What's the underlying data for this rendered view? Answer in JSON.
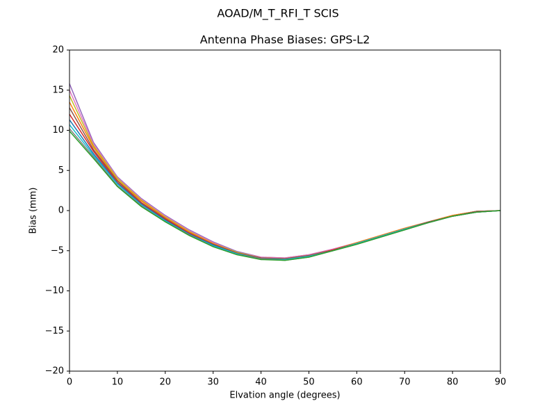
{
  "chart_data": {
    "type": "line",
    "title": "AOAD/M_T_RFI_T  SCIS",
    "subtitle": "Antenna Phase Biases: GPS-L2",
    "x_label": "Elvation angle (degrees)",
    "y_label": "Bias (mm)",
    "x": [
      0,
      5,
      10,
      15,
      20,
      25,
      30,
      35,
      40,
      45,
      50,
      55,
      60,
      65,
      70,
      75,
      80,
      85,
      90
    ],
    "xlim": [
      0,
      90
    ],
    "xticks": [
      0,
      10,
      20,
      30,
      40,
      50,
      60,
      70,
      80,
      90
    ],
    "ylim": [
      -20,
      20
    ],
    "yticks": [
      {
        "value": -20,
        "label": "−20"
      },
      {
        "value": -15,
        "label": "−15"
      },
      {
        "value": -10,
        "label": "−10"
      },
      {
        "value": -5,
        "label": "−5"
      },
      0,
      5,
      10,
      15,
      20
    ],
    "series": [
      {
        "color": "#9467bd",
        "values": [
          15.8,
          8.5,
          4.2,
          1.5,
          -0.6,
          -2.4,
          -3.9,
          -5.1,
          -5.8,
          -5.9,
          -5.5,
          -4.8,
          -4.0,
          -3.1,
          -2.2,
          -1.4,
          -0.6,
          -0.1,
          0.0
        ]
      },
      {
        "color": "#e377c2",
        "values": [
          15.0,
          8.3,
          4.1,
          1.4,
          -0.7,
          -2.5,
          -4.0,
          -5.2,
          -5.8,
          -5.9,
          -5.5,
          -4.8,
          -4.0,
          -3.1,
          -2.2,
          -1.4,
          -0.6,
          -0.1,
          0.0
        ]
      },
      {
        "color": "#bcbd22",
        "values": [
          14.3,
          8.1,
          4.0,
          1.3,
          -0.8,
          -2.6,
          -4.1,
          -5.2,
          -5.9,
          -6.0,
          -5.6,
          -4.9,
          -4.0,
          -3.1,
          -2.2,
          -1.4,
          -0.6,
          -0.1,
          0.0
        ]
      },
      {
        "color": "#ff7f0e",
        "values": [
          13.5,
          7.9,
          3.8,
          1.2,
          -0.9,
          -2.7,
          -4.1,
          -5.3,
          -5.9,
          -6.0,
          -5.6,
          -4.9,
          -4.0,
          -3.1,
          -2.2,
          -1.4,
          -0.6,
          -0.1,
          0.0
        ]
      },
      {
        "color": "#8c564b",
        "values": [
          12.8,
          7.6,
          3.7,
          1.0,
          -1.0,
          -2.8,
          -4.2,
          -5.3,
          -5.9,
          -6.0,
          -5.6,
          -4.9,
          -4.1,
          -3.2,
          -2.3,
          -1.4,
          -0.7,
          -0.1,
          0.0
        ]
      },
      {
        "color": "#d62728",
        "values": [
          12.0,
          7.4,
          3.5,
          0.9,
          -1.1,
          -2.8,
          -4.3,
          -5.4,
          -6.0,
          -6.1,
          -5.7,
          -4.9,
          -4.1,
          -3.2,
          -2.3,
          -1.5,
          -0.7,
          -0.2,
          0.0
        ]
      },
      {
        "color": "#1f77b4",
        "values": [
          11.3,
          7.1,
          3.4,
          0.8,
          -1.2,
          -2.9,
          -4.3,
          -5.4,
          -6.0,
          -6.1,
          -5.7,
          -5.0,
          -4.1,
          -3.2,
          -2.3,
          -1.5,
          -0.7,
          -0.2,
          0.0
        ]
      },
      {
        "color": "#17becf",
        "values": [
          10.7,
          6.9,
          3.3,
          0.7,
          -1.3,
          -3.0,
          -4.4,
          -5.4,
          -6.0,
          -6.1,
          -5.7,
          -5.0,
          -4.1,
          -3.2,
          -2.3,
          -1.5,
          -0.7,
          -0.2,
          0.0
        ]
      },
      {
        "color": "#7f7f7f",
        "values": [
          10.2,
          6.7,
          3.1,
          0.6,
          -1.4,
          -3.0,
          -4.5,
          -5.5,
          -6.0,
          -6.2,
          -5.8,
          -5.0,
          -4.2,
          -3.3,
          -2.4,
          -1.5,
          -0.7,
          -0.2,
          0.0
        ]
      },
      {
        "color": "#2ca02c",
        "values": [
          9.9,
          6.5,
          3.0,
          0.5,
          -1.4,
          -3.1,
          -4.5,
          -5.5,
          -6.1,
          -6.2,
          -5.8,
          -5.0,
          -4.2,
          -3.3,
          -2.4,
          -1.5,
          -0.7,
          -0.2,
          0.0
        ]
      }
    ]
  }
}
